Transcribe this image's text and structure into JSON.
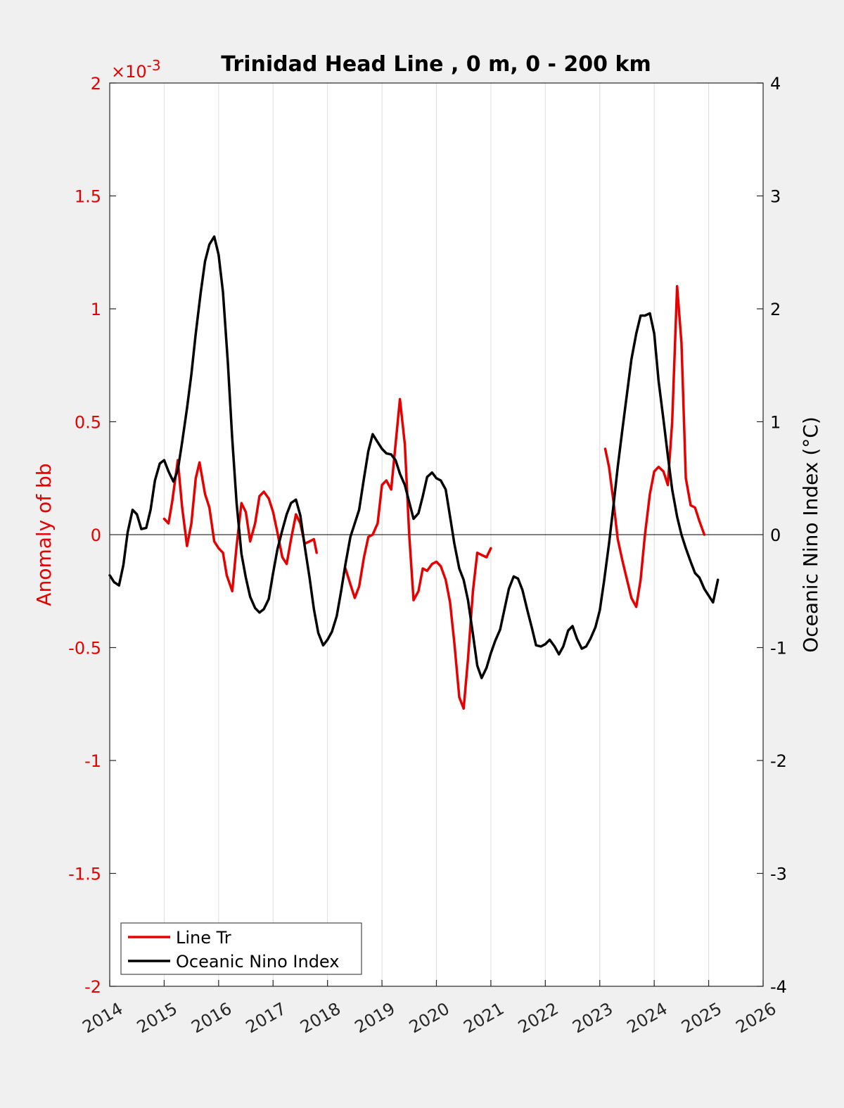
{
  "chart_data": {
    "type": "line",
    "title": "Trinidad Head Line , 0 m, 0 - 200 km",
    "xlim": [
      2014,
      2026
    ],
    "x_ticks": [
      "2014",
      "2015",
      "2016",
      "2017",
      "2018",
      "2019",
      "2020",
      "2021",
      "2022",
      "2023",
      "2024",
      "2025",
      "2026"
    ],
    "grid": "vertical",
    "y_left": {
      "label": "Anomaly of bb",
      "ylim": [
        -2,
        2
      ],
      "ticks": [
        "2",
        "1.5",
        "1",
        "0.5",
        "0",
        "-0.5",
        "-1",
        "-1.5",
        "-2"
      ],
      "exponent": "×10",
      "exponent_power": "-3",
      "color": "#e60000"
    },
    "y_right": {
      "label": "Oceanic Nino Index (°C)",
      "ylim": [
        -4,
        4
      ],
      "ticks": [
        "4",
        "3",
        "2",
        "1",
        "0",
        "-1",
        "-2",
        "-3",
        "-4"
      ],
      "color": "#000000"
    },
    "legend": {
      "placement": "bottom-left",
      "entries": [
        "Line Tr",
        "Oceanic Nino Index"
      ]
    },
    "series": [
      {
        "name": "Line Tr",
        "axis": "left",
        "color": "#e60000",
        "segments": [
          [
            [
              2015.0,
              0.07
            ],
            [
              2015.08,
              0.05
            ],
            [
              2015.15,
              0.15
            ],
            [
              2015.25,
              0.33
            ],
            [
              2015.33,
              0.12
            ],
            [
              2015.42,
              -0.05
            ],
            [
              2015.5,
              0.05
            ],
            [
              2015.58,
              0.25
            ],
            [
              2015.65,
              0.32
            ],
            [
              2015.75,
              0.18
            ],
            [
              2015.83,
              0.12
            ],
            [
              2015.92,
              -0.03
            ],
            [
              2016.0,
              -0.06
            ],
            [
              2016.08,
              -0.08
            ],
            [
              2016.15,
              -0.18
            ],
            [
              2016.25,
              -0.25
            ],
            [
              2016.33,
              -0.05
            ],
            [
              2016.42,
              0.14
            ],
            [
              2016.5,
              0.1
            ],
            [
              2016.58,
              -0.03
            ],
            [
              2016.67,
              0.05
            ],
            [
              2016.75,
              0.17
            ],
            [
              2016.83,
              0.19
            ],
            [
              2016.92,
              0.16
            ],
            [
              2017.0,
              0.1
            ],
            [
              2017.08,
              0.01
            ],
            [
              2017.17,
              -0.1
            ],
            [
              2017.25,
              -0.13
            ],
            [
              2017.33,
              -0.02
            ],
            [
              2017.42,
              0.09
            ],
            [
              2017.5,
              0.05
            ],
            [
              2017.58,
              -0.04
            ],
            [
              2017.67,
              -0.03
            ],
            [
              2017.75,
              -0.02
            ],
            [
              2017.8,
              -0.08
            ]
          ],
          [
            [
              2018.33,
              -0.15
            ],
            [
              2018.42,
              -0.22
            ],
            [
              2018.5,
              -0.28
            ],
            [
              2018.58,
              -0.23
            ],
            [
              2018.67,
              -0.1
            ],
            [
              2018.75,
              -0.01
            ],
            [
              2018.83,
              0.0
            ],
            [
              2018.92,
              0.05
            ],
            [
              2019.0,
              0.22
            ],
            [
              2019.08,
              0.24
            ],
            [
              2019.17,
              0.2
            ],
            [
              2019.25,
              0.4
            ],
            [
              2019.33,
              0.6
            ],
            [
              2019.42,
              0.4
            ],
            [
              2019.5,
              0.0
            ],
            [
              2019.58,
              -0.29
            ],
            [
              2019.67,
              -0.25
            ],
            [
              2019.75,
              -0.15
            ],
            [
              2019.83,
              -0.16
            ],
            [
              2019.92,
              -0.13
            ],
            [
              2020.0,
              -0.12
            ],
            [
              2020.08,
              -0.14
            ],
            [
              2020.17,
              -0.2
            ],
            [
              2020.25,
              -0.3
            ],
            [
              2020.33,
              -0.48
            ],
            [
              2020.42,
              -0.72
            ],
            [
              2020.5,
              -0.77
            ],
            [
              2020.58,
              -0.55
            ],
            [
              2020.67,
              -0.25
            ],
            [
              2020.75,
              -0.08
            ],
            [
              2020.83,
              -0.09
            ],
            [
              2020.92,
              -0.1
            ],
            [
              2021.0,
              -0.06
            ]
          ],
          [
            [
              2023.1,
              0.38
            ],
            [
              2023.17,
              0.3
            ],
            [
              2023.25,
              0.15
            ],
            [
              2023.33,
              -0.02
            ],
            [
              2023.42,
              -0.12
            ],
            [
              2023.5,
              -0.2
            ],
            [
              2023.58,
              -0.28
            ],
            [
              2023.67,
              -0.32
            ],
            [
              2023.75,
              -0.2
            ],
            [
              2023.83,
              0.0
            ],
            [
              2023.92,
              0.18
            ],
            [
              2024.0,
              0.28
            ],
            [
              2024.08,
              0.3
            ],
            [
              2024.17,
              0.28
            ],
            [
              2024.25,
              0.22
            ],
            [
              2024.33,
              0.5
            ],
            [
              2024.42,
              1.1
            ],
            [
              2024.5,
              0.85
            ],
            [
              2024.58,
              0.25
            ],
            [
              2024.67,
              0.13
            ],
            [
              2024.75,
              0.12
            ],
            [
              2024.83,
              0.06
            ],
            [
              2024.92,
              0.0
            ]
          ]
        ]
      },
      {
        "name": "Oceanic Nino Index",
        "axis": "right",
        "color": "#000000",
        "segments": [
          [
            [
              2014.0,
              -0.36
            ],
            [
              2014.08,
              -0.42
            ],
            [
              2014.17,
              -0.45
            ],
            [
              2014.25,
              -0.27
            ],
            [
              2014.33,
              0.02
            ],
            [
              2014.42,
              0.22
            ],
            [
              2014.5,
              0.18
            ],
            [
              2014.58,
              0.05
            ],
            [
              2014.67,
              0.06
            ],
            [
              2014.75,
              0.22
            ],
            [
              2014.83,
              0.48
            ],
            [
              2014.92,
              0.63
            ],
            [
              2015.0,
              0.66
            ],
            [
              2015.08,
              0.56
            ],
            [
              2015.17,
              0.47
            ],
            [
              2015.25,
              0.57
            ],
            [
              2015.33,
              0.82
            ],
            [
              2015.42,
              1.12
            ],
            [
              2015.5,
              1.42
            ],
            [
              2015.58,
              1.78
            ],
            [
              2015.67,
              2.14
            ],
            [
              2015.75,
              2.42
            ],
            [
              2015.83,
              2.57
            ],
            [
              2015.92,
              2.64
            ],
            [
              2016.0,
              2.48
            ],
            [
              2016.08,
              2.15
            ],
            [
              2016.17,
              1.52
            ],
            [
              2016.25,
              0.85
            ],
            [
              2016.33,
              0.28
            ],
            [
              2016.42,
              -0.17
            ],
            [
              2016.5,
              -0.38
            ],
            [
              2016.58,
              -0.55
            ],
            [
              2016.67,
              -0.65
            ],
            [
              2016.75,
              -0.69
            ],
            [
              2016.83,
              -0.66
            ],
            [
              2016.92,
              -0.57
            ],
            [
              2017.0,
              -0.34
            ],
            [
              2017.08,
              -0.13
            ],
            [
              2017.17,
              0.04
            ],
            [
              2017.25,
              0.18
            ],
            [
              2017.33,
              0.28
            ],
            [
              2017.42,
              0.31
            ],
            [
              2017.5,
              0.17
            ],
            [
              2017.58,
              -0.1
            ],
            [
              2017.67,
              -0.38
            ],
            [
              2017.75,
              -0.66
            ],
            [
              2017.83,
              -0.87
            ],
            [
              2017.92,
              -0.98
            ],
            [
              2018.0,
              -0.93
            ],
            [
              2018.08,
              -0.86
            ],
            [
              2018.17,
              -0.72
            ],
            [
              2018.25,
              -0.5
            ],
            [
              2018.33,
              -0.26
            ],
            [
              2018.42,
              -0.02
            ],
            [
              2018.5,
              0.1
            ],
            [
              2018.58,
              0.22
            ],
            [
              2018.67,
              0.5
            ],
            [
              2018.75,
              0.74
            ],
            [
              2018.83,
              0.89
            ],
            [
              2018.92,
              0.82
            ],
            [
              2019.0,
              0.76
            ],
            [
              2019.08,
              0.72
            ],
            [
              2019.17,
              0.71
            ],
            [
              2019.25,
              0.66
            ],
            [
              2019.33,
              0.54
            ],
            [
              2019.42,
              0.44
            ],
            [
              2019.5,
              0.29
            ],
            [
              2019.58,
              0.14
            ],
            [
              2019.67,
              0.19
            ],
            [
              2019.75,
              0.34
            ],
            [
              2019.83,
              0.51
            ],
            [
              2019.92,
              0.55
            ],
            [
              2020.0,
              0.5
            ],
            [
              2020.08,
              0.48
            ],
            [
              2020.17,
              0.4
            ],
            [
              2020.25,
              0.16
            ],
            [
              2020.33,
              -0.08
            ],
            [
              2020.42,
              -0.3
            ],
            [
              2020.5,
              -0.4
            ],
            [
              2020.58,
              -0.58
            ],
            [
              2020.67,
              -0.88
            ],
            [
              2020.75,
              -1.16
            ],
            [
              2020.83,
              -1.27
            ],
            [
              2020.92,
              -1.18
            ],
            [
              2021.0,
              -1.05
            ],
            [
              2021.08,
              -0.94
            ],
            [
              2021.17,
              -0.84
            ],
            [
              2021.25,
              -0.66
            ],
            [
              2021.33,
              -0.48
            ],
            [
              2021.42,
              -0.37
            ],
            [
              2021.5,
              -0.39
            ],
            [
              2021.58,
              -0.49
            ],
            [
              2021.67,
              -0.67
            ],
            [
              2021.75,
              -0.82
            ],
            [
              2021.83,
              -0.98
            ],
            [
              2021.92,
              -0.99
            ],
            [
              2022.0,
              -0.97
            ],
            [
              2022.08,
              -0.93
            ],
            [
              2022.17,
              -0.99
            ],
            [
              2022.25,
              -1.06
            ],
            [
              2022.33,
              -0.99
            ],
            [
              2022.42,
              -0.85
            ],
            [
              2022.5,
              -0.81
            ],
            [
              2022.58,
              -0.92
            ],
            [
              2022.67,
              -1.01
            ],
            [
              2022.75,
              -0.99
            ],
            [
              2022.83,
              -0.92
            ],
            [
              2022.92,
              -0.82
            ],
            [
              2023.0,
              -0.67
            ],
            [
              2023.08,
              -0.41
            ],
            [
              2023.17,
              -0.08
            ],
            [
              2023.25,
              0.25
            ],
            [
              2023.33,
              0.6
            ],
            [
              2023.42,
              0.95
            ],
            [
              2023.5,
              1.25
            ],
            [
              2023.58,
              1.55
            ],
            [
              2023.67,
              1.78
            ],
            [
              2023.75,
              1.94
            ],
            [
              2023.83,
              1.94
            ],
            [
              2023.92,
              1.96
            ],
            [
              2024.0,
              1.78
            ],
            [
              2024.08,
              1.36
            ],
            [
              2024.17,
              1.02
            ],
            [
              2024.25,
              0.7
            ],
            [
              2024.33,
              0.4
            ],
            [
              2024.42,
              0.16
            ],
            [
              2024.5,
              0.0
            ],
            [
              2024.58,
              -0.12
            ],
            [
              2024.67,
              -0.24
            ],
            [
              2024.75,
              -0.34
            ],
            [
              2024.83,
              -0.38
            ],
            [
              2024.92,
              -0.48
            ],
            [
              2025.0,
              -0.54
            ],
            [
              2025.08,
              -0.6
            ],
            [
              2025.17,
              -0.4
            ]
          ]
        ]
      }
    ]
  }
}
